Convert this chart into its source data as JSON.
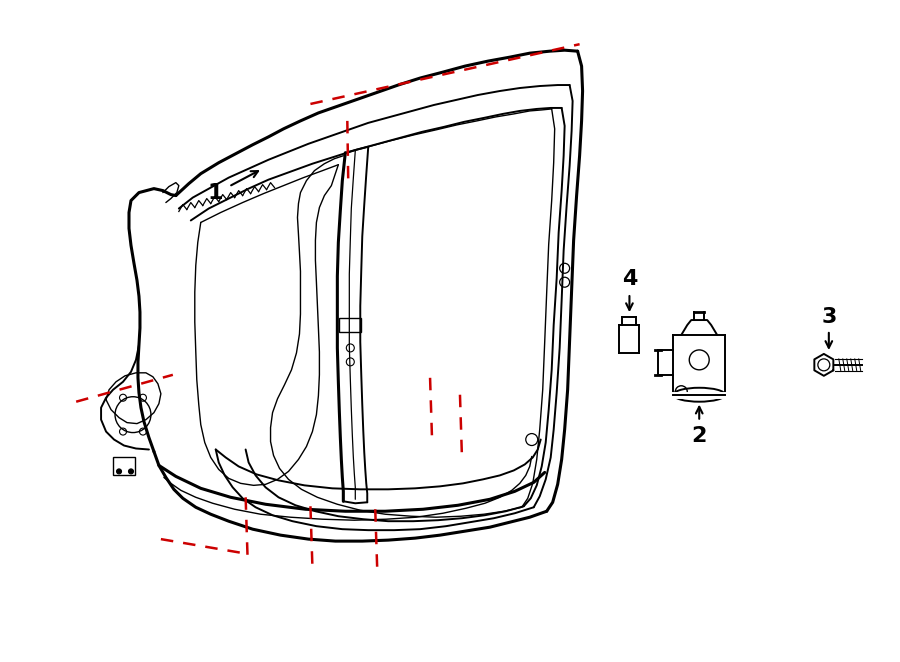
{
  "background_color": "#ffffff",
  "line_color": "#000000",
  "red_dash_color": "#cc0000",
  "figsize": [
    9.0,
    6.62
  ],
  "dpi": 100,
  "lw_outer": 2.2,
  "lw_inner": 1.4,
  "lw_thin": 1.0,
  "label_fontsize": 16
}
